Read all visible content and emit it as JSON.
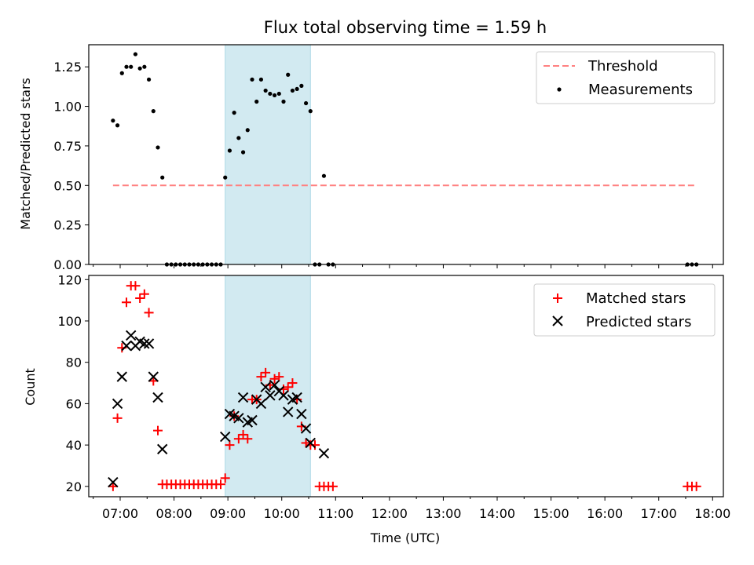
{
  "chart_data": [
    {
      "type": "scatter",
      "title": "Flux total observing time = 1.59 h",
      "xlabel": "",
      "ylabel": "Matched/Predicted stars",
      "xlim": [
        "06:25",
        "18:12"
      ],
      "ylim": [
        0,
        1.39
      ],
      "x_tick_labels": [
        "07:00",
        "08:00",
        "09:00",
        "10:00",
        "11:00",
        "12:00",
        "13:00",
        "14:00",
        "15:00",
        "16:00",
        "17:00",
        "18:00"
      ],
      "y_ticks": [
        0.0,
        0.25,
        0.5,
        0.75,
        1.0,
        1.25
      ],
      "y_tick_labels": [
        "0.00",
        "0.25",
        "0.50",
        "0.75",
        "1.00",
        "1.25"
      ],
      "shaded_span": [
        "08:57",
        "10:32"
      ],
      "grid": false,
      "legend_position": "top-right",
      "series": [
        {
          "name": "Threshold",
          "style": "dashed-line",
          "color": "#ff8080",
          "x": [
            "06:52",
            "17:42"
          ],
          "y": [
            0.5,
            0.5
          ]
        },
        {
          "name": "Measurements",
          "style": "dot",
          "color": "#000000",
          "x": [
            "06:52",
            "06:57",
            "07:02",
            "07:07",
            "07:12",
            "07:17",
            "07:22",
            "07:27",
            "07:32",
            "07:37",
            "07:42",
            "07:47",
            "07:52",
            "07:57",
            "08:02",
            "08:07",
            "08:12",
            "08:17",
            "08:22",
            "08:27",
            "08:32",
            "08:37",
            "08:42",
            "08:47",
            "08:52",
            "08:57",
            "09:02",
            "09:07",
            "09:12",
            "09:17",
            "09:22",
            "09:27",
            "09:32",
            "09:37",
            "09:42",
            "09:47",
            "09:52",
            "09:57",
            "10:02",
            "10:07",
            "10:12",
            "10:17",
            "10:22",
            "10:27",
            "10:32",
            "10:37",
            "10:42",
            "10:47",
            "10:52",
            "10:57",
            "17:32",
            "17:37",
            "17:42"
          ],
          "y": [
            0.91,
            0.88,
            1.21,
            1.25,
            1.25,
            1.33,
            1.24,
            1.25,
            1.17,
            0.97,
            0.74,
            0.55,
            0,
            0,
            0,
            0,
            0,
            0,
            0,
            0,
            0,
            0,
            0,
            0,
            0,
            0.55,
            0.72,
            0.96,
            0.8,
            0.71,
            0.85,
            1.17,
            1.03,
            1.17,
            1.1,
            1.08,
            1.07,
            1.08,
            1.03,
            1.2,
            1.1,
            1.11,
            1.13,
            1.02,
            0.97,
            0,
            0,
            0.56,
            0,
            0,
            0,
            0,
            0
          ]
        }
      ]
    },
    {
      "type": "scatter",
      "title": "",
      "xlabel": "Time (UTC)",
      "ylabel": "Count",
      "xlim": [
        "06:25",
        "18:12"
      ],
      "ylim": [
        15,
        122
      ],
      "x_tick_labels": [
        "07:00",
        "08:00",
        "09:00",
        "10:00",
        "11:00",
        "12:00",
        "13:00",
        "14:00",
        "15:00",
        "16:00",
        "17:00",
        "18:00"
      ],
      "y_ticks": [
        20,
        40,
        60,
        80,
        100,
        120
      ],
      "y_tick_labels": [
        "20",
        "40",
        "60",
        "80",
        "100",
        "120"
      ],
      "shaded_span": [
        "08:57",
        "10:32"
      ],
      "grid": false,
      "legend_position": "top-right",
      "series": [
        {
          "name": "Matched stars",
          "marker": "plus",
          "color": "#ff0000",
          "x": [
            "06:52",
            "06:57",
            "07:02",
            "07:07",
            "07:12",
            "07:17",
            "07:22",
            "07:27",
            "07:32",
            "07:37",
            "07:42",
            "07:47",
            "07:52",
            "07:57",
            "08:02",
            "08:07",
            "08:12",
            "08:17",
            "08:22",
            "08:27",
            "08:32",
            "08:37",
            "08:42",
            "08:47",
            "08:52",
            "08:57",
            "09:02",
            "09:07",
            "09:12",
            "09:17",
            "09:22",
            "09:27",
            "09:32",
            "09:37",
            "09:42",
            "09:47",
            "09:52",
            "09:57",
            "10:02",
            "10:07",
            "10:12",
            "10:17",
            "10:22",
            "10:27",
            "10:32",
            "10:37",
            "10:42",
            "10:47",
            "10:52",
            "10:57",
            "17:32",
            "17:37",
            "17:42"
          ],
          "y": [
            20,
            53,
            87,
            109,
            117,
            117,
            111,
            113,
            104,
            71,
            47,
            21,
            21,
            21,
            21,
            21,
            21,
            21,
            21,
            21,
            21,
            21,
            21,
            21,
            21,
            24,
            40,
            54,
            43,
            45,
            43,
            62,
            62,
            73,
            75,
            69,
            72,
            73,
            67,
            68,
            70,
            62,
            49,
            41,
            40,
            40,
            20,
            20,
            20,
            20,
            20,
            20,
            20
          ]
        },
        {
          "name": "Predicted stars",
          "marker": "x",
          "color": "#000000",
          "x": [
            "06:52",
            "06:57",
            "07:02",
            "07:07",
            "07:12",
            "07:17",
            "07:22",
            "07:27",
            "07:32",
            "07:37",
            "07:42",
            "07:47",
            "08:57",
            "09:02",
            "09:07",
            "09:12",
            "09:17",
            "09:22",
            "09:27",
            "09:32",
            "09:37",
            "09:42",
            "09:47",
            "09:52",
            "09:57",
            "10:02",
            "10:07",
            "10:12",
            "10:17",
            "10:22",
            "10:27",
            "10:32",
            "10:47"
          ],
          "y": [
            22,
            60,
            73,
            88,
            93,
            88,
            90,
            89,
            89,
            73,
            63,
            38,
            44,
            55,
            54,
            53,
            63,
            51,
            52,
            62,
            60,
            68,
            64,
            69,
            66,
            64,
            56,
            62,
            63,
            55,
            48,
            41,
            36
          ]
        }
      ]
    }
  ]
}
